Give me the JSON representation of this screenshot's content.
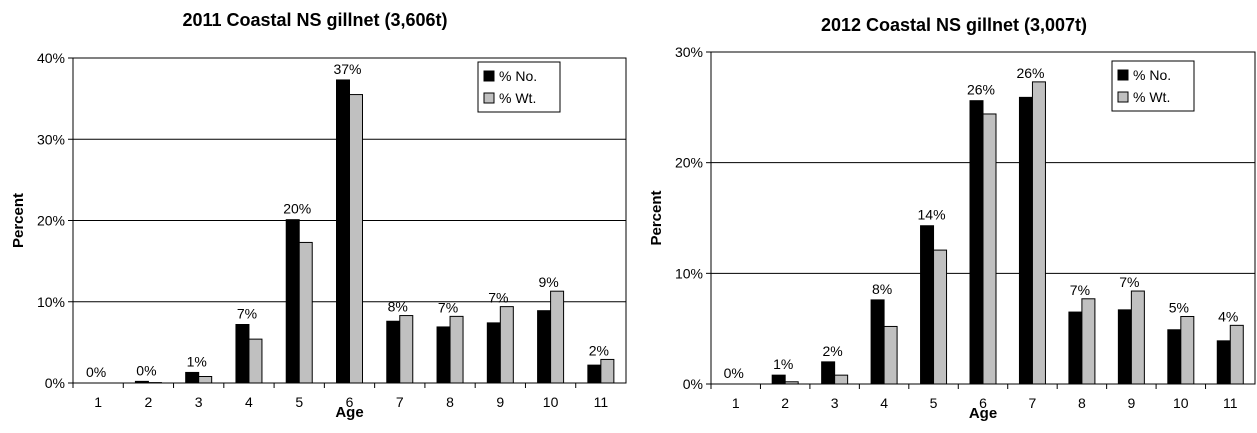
{
  "chart_data": [
    {
      "type": "bar",
      "title": "2011 Coastal NS gillnet (3,606t)",
      "xlabel": "Age",
      "ylabel": "Percent",
      "ylim": [
        0,
        40
      ],
      "yticks": [
        "0%",
        "10%",
        "20%",
        "30%",
        "40%"
      ],
      "grid": true,
      "legend_position": "top-right",
      "categories": [
        "1",
        "2",
        "3",
        "4",
        "5",
        "6",
        "7",
        "8",
        "9",
        "10",
        "11"
      ],
      "series": [
        {
          "name": "% No.",
          "color": "#000000",
          "values": [
            0,
            0.2,
            1.3,
            7.2,
            20.1,
            37.3,
            7.6,
            6.9,
            7.4,
            8.9,
            2.2
          ]
        },
        {
          "name": "% Wt.",
          "color": "#c0c0c0",
          "values": [
            0,
            0.05,
            0.8,
            5.4,
            17.3,
            35.5,
            8.3,
            8.2,
            9.4,
            11.3,
            2.9
          ]
        }
      ],
      "data_labels": [
        "0%",
        "0%",
        "1%",
        "7%",
        "20%",
        "37%",
        "8%",
        "7%",
        "7%",
        "9%",
        "2%"
      ]
    },
    {
      "type": "bar",
      "title": "2012 Coastal NS gillnet (3,007t)",
      "xlabel": "Age",
      "ylabel": "Percent",
      "ylim": [
        0,
        30
      ],
      "yticks": [
        "0%",
        "10%",
        "20%",
        "30%"
      ],
      "grid": true,
      "legend_position": "top-right",
      "categories": [
        "1",
        "2",
        "3",
        "4",
        "5",
        "6",
        "7",
        "8",
        "9",
        "10",
        "11"
      ],
      "series": [
        {
          "name": "% No.",
          "color": "#000000",
          "values": [
            0,
            0.8,
            2.0,
            7.6,
            14.3,
            25.6,
            25.9,
            6.5,
            6.7,
            4.9,
            3.9
          ]
        },
        {
          "name": "% Wt.",
          "color": "#c0c0c0",
          "values": [
            0,
            0.2,
            0.8,
            5.2,
            12.1,
            24.4,
            27.3,
            7.7,
            8.4,
            6.1,
            5.3
          ]
        }
      ],
      "data_labels": [
        "0%",
        "1%",
        "2%",
        "8%",
        "14%",
        "26%",
        "26%",
        "7%",
        "7%",
        "5%",
        "4%"
      ]
    }
  ]
}
